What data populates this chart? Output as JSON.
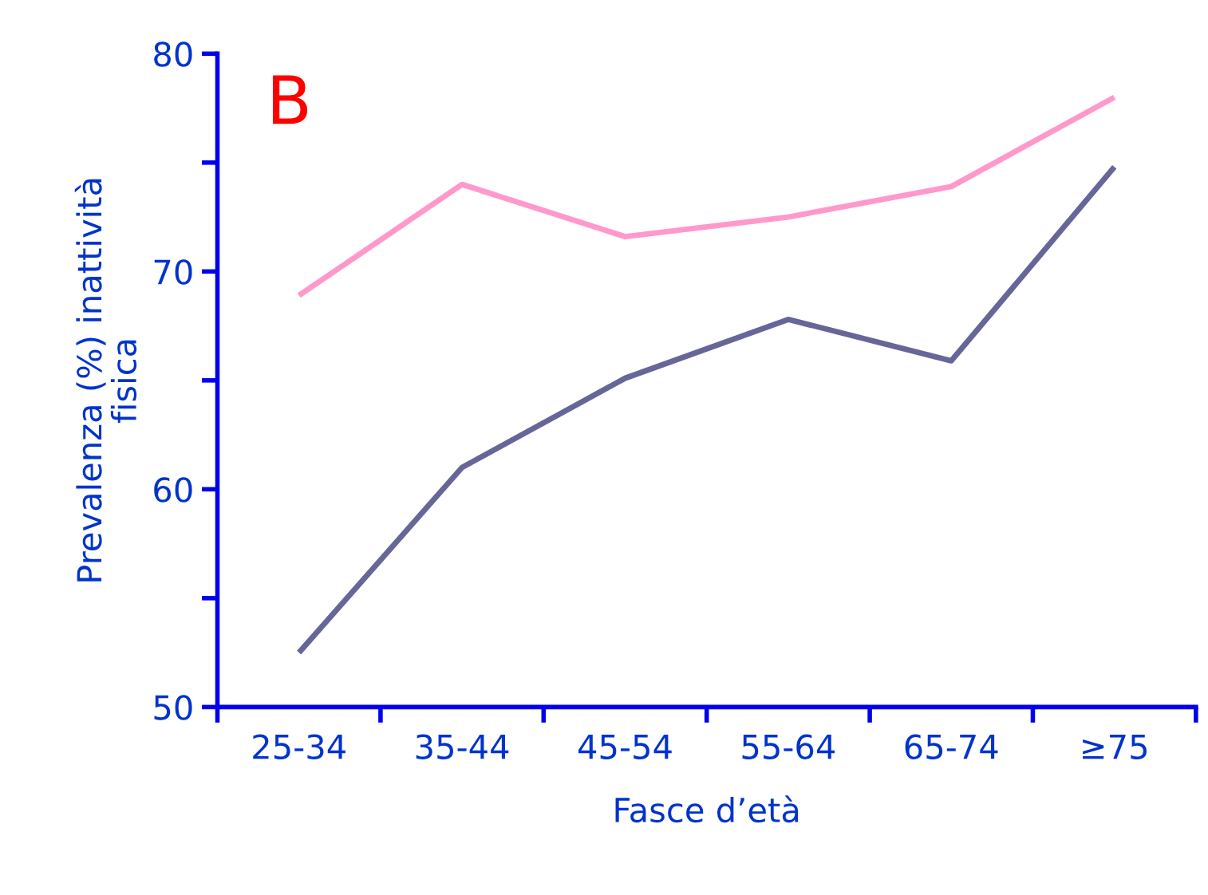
{
  "chart_data": {
    "type": "line",
    "xlabel": "Fasce d’età",
    "ylabel": "Prevalenza (%) inattività\nfisica",
    "annotations": [
      "B"
    ],
    "categories": [
      "25-34",
      "35-44",
      "45-54",
      "55-64",
      "65-74",
      "≥75"
    ],
    "series": [
      {
        "color": "#ff99cc",
        "values": [
          68.9,
          74.0,
          71.6,
          72.5,
          73.9,
          78.0
        ]
      },
      {
        "color": "#666699",
        "values": [
          52.5,
          61.0,
          65.1,
          67.8,
          65.9,
          74.8
        ]
      }
    ],
    "ylim": [
      50,
      80
    ],
    "yticks": [
      50,
      {
        "value": 55,
        "label": null
      },
      60,
      {
        "value": 65,
        "label": null
      },
      70,
      {
        "value": 75,
        "label": null
      },
      80
    ],
    "grid": false,
    "marker": "none",
    "line_style": "solid"
  }
}
